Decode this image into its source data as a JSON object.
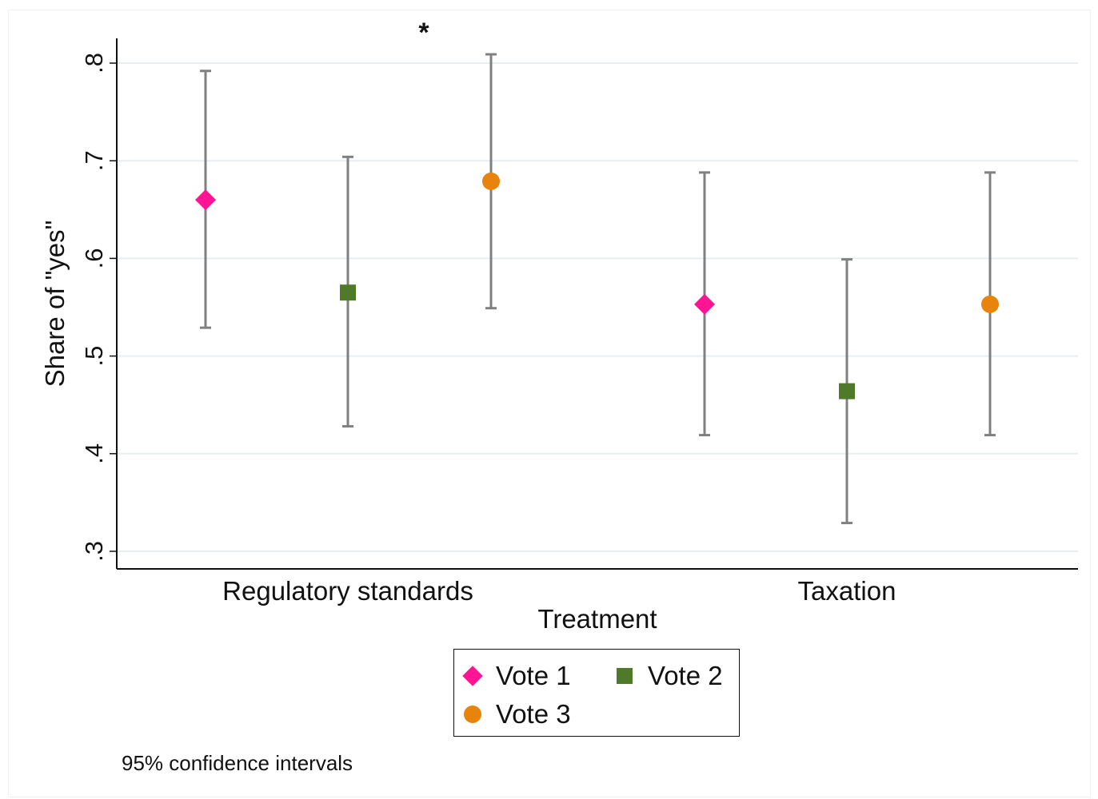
{
  "chart_data": {
    "type": "scatter",
    "subtype": "dot-plot with error bars",
    "title": "",
    "annotation": "*",
    "xlabel": "Treatment",
    "ylabel": "Share of \"yes\"",
    "categories": [
      "Regulatory standards",
      "Taxation"
    ],
    "ylim": [
      0.282,
      0.826
    ],
    "yticks": [
      0.3,
      0.4,
      0.5,
      0.6,
      0.7,
      0.8
    ],
    "ytick_labels": [
      ".3",
      ".4",
      ".5",
      ".6",
      ".7",
      ".8"
    ],
    "grid": true,
    "series": [
      {
        "name": "Vote 1",
        "marker": "diamond",
        "color": "#ff1493",
        "values": [
          0.66,
          0.553
        ],
        "ci_low": [
          0.529,
          0.419
        ],
        "ci_high": [
          0.792,
          0.688
        ]
      },
      {
        "name": "Vote 2",
        "marker": "square",
        "color": "#4e7a2a",
        "values": [
          0.565,
          0.464
        ],
        "ci_low": [
          0.428,
          0.329
        ],
        "ci_high": [
          0.704,
          0.599
        ]
      },
      {
        "name": "Vote 3",
        "marker": "circle",
        "color": "#e8830b",
        "values": [
          0.679,
          0.553
        ],
        "ci_low": [
          0.549,
          0.419
        ],
        "ci_high": [
          0.809,
          0.688
        ]
      }
    ],
    "legend": {
      "position": "bottom",
      "entries": [
        "Vote 1",
        "Vote 2",
        "Vote 3"
      ]
    },
    "note": "95% confidence intervals",
    "colors": {
      "errorbar": "#808080",
      "grid": "#e6eef0",
      "axis": "#111111"
    }
  }
}
